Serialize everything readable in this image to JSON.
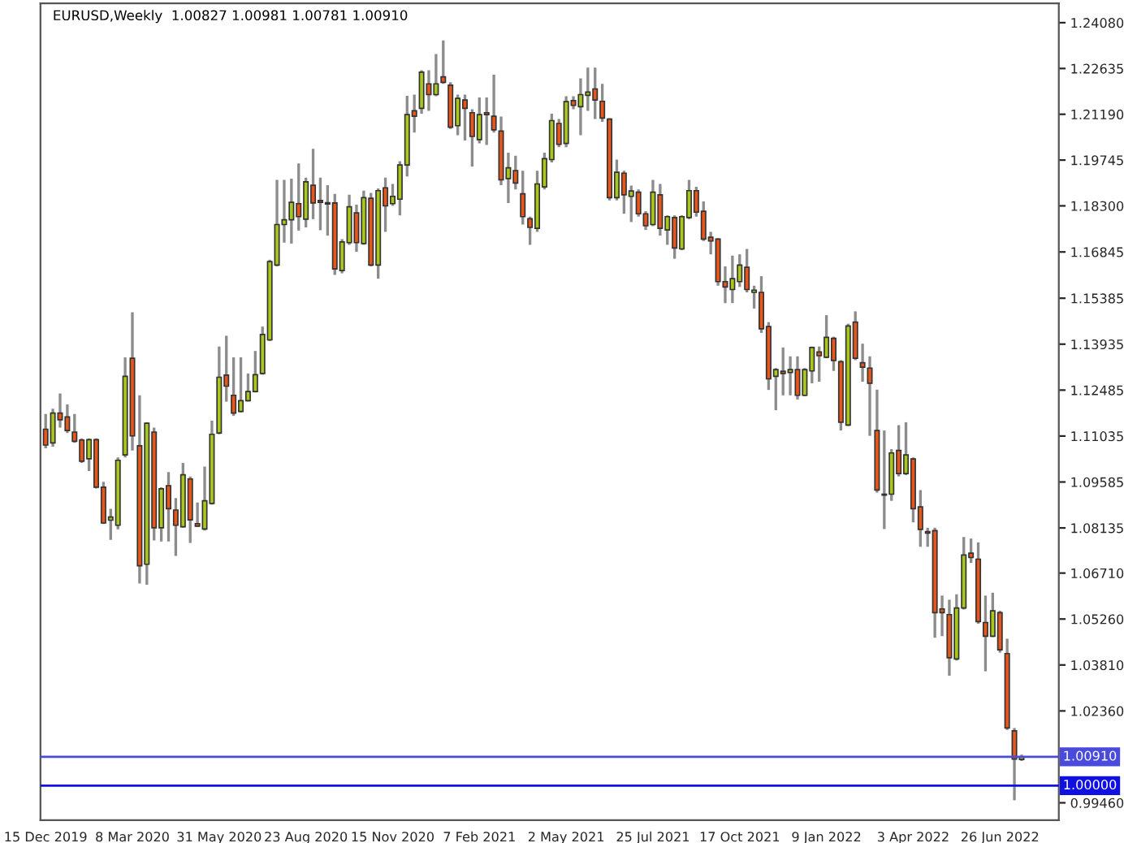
{
  "chart_data": {
    "type": "candlestick",
    "title": "EURUSD,Weekly  1.00827 1.00981 1.00781 1.00910",
    "x": [
      "2019-12-15",
      "2019-12-22",
      "2019-12-29",
      "2020-01-05",
      "2020-01-12",
      "2020-01-19",
      "2020-01-26",
      "2020-02-02",
      "2020-02-09",
      "2020-02-16",
      "2020-02-23",
      "2020-03-01",
      "2020-03-08",
      "2020-03-15",
      "2020-03-22",
      "2020-03-29",
      "2020-04-05",
      "2020-04-12",
      "2020-04-19",
      "2020-04-26",
      "2020-05-03",
      "2020-05-10",
      "2020-05-17",
      "2020-05-24",
      "2020-05-31",
      "2020-06-07",
      "2020-06-14",
      "2020-06-21",
      "2020-06-28",
      "2020-07-05",
      "2020-07-12",
      "2020-07-19",
      "2020-07-26",
      "2020-08-02",
      "2020-08-09",
      "2020-08-16",
      "2020-08-23",
      "2020-08-30",
      "2020-09-06",
      "2020-09-13",
      "2020-09-20",
      "2020-09-27",
      "2020-10-04",
      "2020-10-11",
      "2020-10-18",
      "2020-10-25",
      "2020-11-01",
      "2020-11-08",
      "2020-11-15",
      "2020-11-22",
      "2020-11-29",
      "2020-12-06",
      "2020-12-13",
      "2020-12-20",
      "2020-12-27",
      "2021-01-03",
      "2021-01-10",
      "2021-01-17",
      "2021-01-24",
      "2021-01-31",
      "2021-02-07",
      "2021-02-14",
      "2021-02-21",
      "2021-02-28",
      "2021-03-07",
      "2021-03-14",
      "2021-03-21",
      "2021-03-28",
      "2021-04-04",
      "2021-04-11",
      "2021-04-18",
      "2021-04-25",
      "2021-05-02",
      "2021-05-09",
      "2021-05-16",
      "2021-05-23",
      "2021-05-30",
      "2021-06-06",
      "2021-06-13",
      "2021-06-20",
      "2021-06-27",
      "2021-07-04",
      "2021-07-11",
      "2021-07-18",
      "2021-07-25",
      "2021-08-01",
      "2021-08-08",
      "2021-08-15",
      "2021-08-22",
      "2021-08-29",
      "2021-09-05",
      "2021-09-12",
      "2021-09-19",
      "2021-09-26",
      "2021-10-03",
      "2021-10-10",
      "2021-10-17",
      "2021-10-24",
      "2021-10-31",
      "2021-11-07",
      "2021-11-14",
      "2021-11-21",
      "2021-11-28",
      "2021-12-05",
      "2021-12-12",
      "2021-12-19",
      "2021-12-26",
      "2022-01-02",
      "2022-01-09",
      "2022-01-16",
      "2022-01-23",
      "2022-01-30",
      "2022-02-06",
      "2022-02-13",
      "2022-02-20",
      "2022-02-27",
      "2022-03-06",
      "2022-03-13",
      "2022-03-20",
      "2022-03-27",
      "2022-04-03",
      "2022-04-10",
      "2022-04-17",
      "2022-04-24",
      "2022-05-01",
      "2022-05-08",
      "2022-05-15",
      "2022-05-22",
      "2022-05-29",
      "2022-06-05",
      "2022-06-12",
      "2022-06-19",
      "2022-06-26",
      "2022-07-03",
      "2022-07-10",
      "2022-07-17"
    ],
    "ohlc": [
      [
        1.1125,
        1.1173,
        1.1065,
        1.1075
      ],
      [
        1.1082,
        1.119,
        1.107,
        1.1176
      ],
      [
        1.1176,
        1.1238,
        1.113,
        1.1155
      ],
      [
        1.1164,
        1.1203,
        1.1113,
        1.1121
      ],
      [
        1.1116,
        1.1173,
        1.1082,
        1.1087
      ],
      [
        1.1091,
        1.1096,
        1.1019,
        1.1024
      ],
      [
        1.1032,
        1.1096,
        1.0993,
        1.1092
      ],
      [
        1.1092,
        1.1096,
        1.0938,
        1.0942
      ],
      [
        1.0942,
        1.0959,
        1.0826,
        1.0829
      ],
      [
        1.0838,
        1.0874,
        1.0776,
        1.0848
      ],
      [
        1.0822,
        1.1036,
        1.0809,
        1.1027
      ],
      [
        1.1044,
        1.1352,
        1.1036,
        1.1292
      ],
      [
        1.1349,
        1.1494,
        1.1058,
        1.1104
      ],
      [
        1.1073,
        1.1232,
        1.0638,
        1.0694
      ],
      [
        1.0699,
        1.1147,
        1.0634,
        1.1144
      ],
      [
        1.1116,
        1.113,
        1.0774,
        1.0814
      ],
      [
        1.0814,
        1.0942,
        1.0771,
        1.0937
      ],
      [
        1.0947,
        1.099,
        1.0771,
        1.0874
      ],
      [
        1.087,
        1.0908,
        1.0725,
        1.0822
      ],
      [
        1.0817,
        1.1019,
        1.0814,
        1.0981
      ],
      [
        1.0968,
        1.0976,
        1.0766,
        1.0839
      ],
      [
        1.0827,
        1.0894,
        1.0817,
        1.0819
      ],
      [
        1.081,
        1.1007,
        1.0805,
        1.0899
      ],
      [
        1.0891,
        1.1152,
        1.0887,
        1.1109
      ],
      [
        1.1113,
        1.1386,
        1.1109,
        1.1289
      ],
      [
        1.1296,
        1.142,
        1.1212,
        1.1261
      ],
      [
        1.1232,
        1.1352,
        1.1167,
        1.1176
      ],
      [
        1.1181,
        1.1352,
        1.1178,
        1.1215
      ],
      [
        1.1215,
        1.1301,
        1.1212,
        1.1244
      ],
      [
        1.1244,
        1.1372,
        1.1241,
        1.1297
      ],
      [
        1.1301,
        1.1449,
        1.1297,
        1.1424
      ],
      [
        1.1407,
        1.166,
        1.1403,
        1.1654
      ],
      [
        1.1643,
        1.1912,
        1.1639,
        1.1771
      ],
      [
        1.1771,
        1.1912,
        1.1714,
        1.1786
      ],
      [
        1.1786,
        1.1916,
        1.1711,
        1.1841
      ],
      [
        1.1837,
        1.1964,
        1.1752,
        1.1796
      ],
      [
        1.1788,
        1.1919,
        1.1762,
        1.1906
      ],
      [
        1.1895,
        1.201,
        1.1788,
        1.1839
      ],
      [
        1.1847,
        1.1919,
        1.1753,
        1.1841
      ],
      [
        1.1836,
        1.1895,
        1.1736,
        1.184
      ],
      [
        1.1839,
        1.1868,
        1.1612,
        1.1631
      ],
      [
        1.1626,
        1.1725,
        1.1617,
        1.1716
      ],
      [
        1.1714,
        1.1865,
        1.1707,
        1.1827
      ],
      [
        1.1808,
        1.1834,
        1.1685,
        1.1714
      ],
      [
        1.1711,
        1.1878,
        1.1707,
        1.1856
      ],
      [
        1.1854,
        1.1871,
        1.1639,
        1.1643
      ],
      [
        1.1643,
        1.1885,
        1.16,
        1.1878
      ],
      [
        1.1887,
        1.1919,
        1.1748,
        1.183
      ],
      [
        1.1837,
        1.1899,
        1.183,
        1.186
      ],
      [
        1.1851,
        1.1971,
        1.18,
        1.1959
      ],
      [
        1.1959,
        1.2177,
        1.1923,
        1.2118
      ],
      [
        1.213,
        1.2181,
        1.2061,
        1.2113
      ],
      [
        1.2138,
        1.2258,
        1.2121,
        1.2252
      ],
      [
        1.2215,
        1.2258,
        1.213,
        1.2181
      ],
      [
        1.2181,
        1.2309,
        1.2176,
        1.2215
      ],
      [
        1.2237,
        1.2352,
        1.2215,
        1.222
      ],
      [
        1.2211,
        1.222,
        1.2073,
        1.2078
      ],
      [
        1.2083,
        1.2181,
        1.2053,
        1.2169
      ],
      [
        1.2164,
        1.2181,
        1.2036,
        1.2138
      ],
      [
        1.2124,
        1.2135,
        1.1954,
        1.2049
      ],
      [
        1.2039,
        1.2172,
        1.2027,
        1.2118
      ],
      [
        1.2124,
        1.2172,
        1.2022,
        1.2118
      ],
      [
        1.2113,
        1.2244,
        1.2061,
        1.207
      ],
      [
        1.2066,
        1.2112,
        1.1895,
        1.1912
      ],
      [
        1.1916,
        1.1998,
        1.1839,
        1.195
      ],
      [
        1.1941,
        1.1988,
        1.1882,
        1.1902
      ],
      [
        1.1868,
        1.1941,
        1.1771,
        1.1796
      ],
      [
        1.1789,
        1.1796,
        1.1707,
        1.1762
      ],
      [
        1.1759,
        1.1941,
        1.1748,
        1.1899
      ],
      [
        1.189,
        1.1998,
        1.1882,
        1.1979
      ],
      [
        1.1976,
        1.2121,
        1.1967,
        1.2099
      ],
      [
        1.209,
        1.2104,
        1.2015,
        1.2024
      ],
      [
        1.2027,
        1.2176,
        1.2015,
        1.2159
      ],
      [
        1.2162,
        1.2176,
        1.2135,
        1.2147
      ],
      [
        1.2143,
        1.2232,
        1.2053,
        1.2181
      ],
      [
        1.2179,
        1.2266,
        1.213,
        1.2189
      ],
      [
        1.2199,
        1.2266,
        1.2104,
        1.2164
      ],
      [
        1.216,
        1.2215,
        1.2095,
        1.2107
      ],
      [
        1.2104,
        1.2107,
        1.1847,
        1.1856
      ],
      [
        1.1856,
        1.1976,
        1.1847,
        1.1936
      ],
      [
        1.1933,
        1.1941,
        1.1805,
        1.1865
      ],
      [
        1.186,
        1.1894,
        1.1779,
        1.1877
      ],
      [
        1.1873,
        1.1882,
        1.1796,
        1.1805
      ],
      [
        1.1805,
        1.1813,
        1.1754,
        1.1767
      ],
      [
        1.1771,
        1.1912,
        1.1766,
        1.1873
      ],
      [
        1.1865,
        1.1899,
        1.1736,
        1.1759
      ],
      [
        1.1754,
        1.18,
        1.1707,
        1.1796
      ],
      [
        1.1793,
        1.18,
        1.1663,
        1.1697
      ],
      [
        1.1694,
        1.18,
        1.169,
        1.1796
      ],
      [
        1.1793,
        1.1912,
        1.1788,
        1.1878
      ],
      [
        1.1878,
        1.189,
        1.1796,
        1.181
      ],
      [
        1.1813,
        1.1844,
        1.1719,
        1.1725
      ],
      [
        1.1731,
        1.1748,
        1.1677,
        1.1719
      ],
      [
        1.1725,
        1.1728,
        1.1578,
        1.1591
      ],
      [
        1.1591,
        1.1639,
        1.1523,
        1.1574
      ],
      [
        1.1566,
        1.1673,
        1.1523,
        1.16
      ],
      [
        1.1591,
        1.1677,
        1.1574,
        1.1643
      ],
      [
        1.1636,
        1.1694,
        1.1557,
        1.1566
      ],
      [
        1.1557,
        1.1578,
        1.1506,
        1.1564
      ],
      [
        1.1557,
        1.1608,
        1.1429,
        1.1442
      ],
      [
        1.1449,
        1.1463,
        1.1249,
        1.1284
      ],
      [
        1.1292,
        1.1318,
        1.1185,
        1.1313
      ],
      [
        1.1308,
        1.1383,
        1.1232,
        1.1301
      ],
      [
        1.1304,
        1.1355,
        1.1232,
        1.1313
      ],
      [
        1.1313,
        1.1355,
        1.1219,
        1.1232
      ],
      [
        1.1232,
        1.1318,
        1.1229,
        1.1313
      ],
      [
        1.1309,
        1.1386,
        1.127,
        1.1383
      ],
      [
        1.1369,
        1.1386,
        1.1275,
        1.1357
      ],
      [
        1.1352,
        1.1485,
        1.1349,
        1.1415
      ],
      [
        1.1412,
        1.1417,
        1.1309,
        1.1342
      ],
      [
        1.1338,
        1.1343,
        1.1121,
        1.1147
      ],
      [
        1.1138,
        1.1458,
        1.1135,
        1.1451
      ],
      [
        1.1463,
        1.1497,
        1.1343,
        1.1349
      ],
      [
        1.1335,
        1.1395,
        1.1275,
        1.1321
      ],
      [
        1.1318,
        1.1355,
        1.1104,
        1.127
      ],
      [
        1.1121,
        1.125,
        1.0925,
        1.0933
      ],
      [
        1.092,
        1.1121,
        1.081,
        1.0917
      ],
      [
        1.092,
        1.1062,
        1.0899,
        1.105
      ],
      [
        1.1058,
        1.1138,
        1.0976,
        1.0985
      ],
      [
        1.0985,
        1.1147,
        1.098,
        1.1044
      ],
      [
        1.1031,
        1.1036,
        1.0831,
        1.0874
      ],
      [
        1.088,
        1.0933,
        1.0754,
        1.0809
      ],
      [
        1.0802,
        1.0814,
        1.0754,
        1.0797
      ],
      [
        1.0805,
        1.0814,
        1.0467,
        1.0546
      ],
      [
        1.0558,
        1.06,
        1.0472,
        1.0546
      ],
      [
        1.054,
        1.0587,
        1.0347,
        1.0404
      ],
      [
        1.04,
        1.0604,
        1.0395,
        1.0561
      ],
      [
        1.0561,
        1.0785,
        1.0556,
        1.0728
      ],
      [
        1.0734,
        1.078,
        1.0703,
        1.072
      ],
      [
        1.0715,
        1.0768,
        1.0511,
        1.0518
      ],
      [
        1.0515,
        1.06,
        1.0361,
        1.0472
      ],
      [
        1.0472,
        1.0609,
        1.0469,
        1.0552
      ],
      [
        1.0546,
        1.0552,
        1.042,
        1.0429
      ],
      [
        1.0417,
        1.0464,
        1.0176,
        1.0182
      ],
      [
        1.0173,
        1.0182,
        0.9954,
        1.0084
      ],
      [
        1.00827,
        1.00981,
        1.00781,
        1.0091
      ]
    ],
    "colors": [
      "#e8561c",
      "#a9c81c",
      "#e8561c",
      "#e8561c",
      "#e8561c",
      "#e8561c",
      "#a9c81c",
      "#e8561c",
      "#e8561c",
      "#a9c81c",
      "#a9c81c",
      "#a9c81c",
      "#e8561c",
      "#e8561c",
      "#a9c81c",
      "#e8561c",
      "#a9c81c",
      "#e8561c",
      "#e8561c",
      "#a9c81c",
      "#e8561c",
      "#e8561c",
      "#a9c81c",
      "#a9c81c",
      "#a9c81c",
      "#e8561c",
      "#e8561c",
      "#a9c81c",
      "#a9c81c",
      "#a9c81c",
      "#a9c81c",
      "#a9c81c",
      "#a9c81c",
      "#a9c81c",
      "#a9c81c",
      "#e8561c",
      "#a9c81c",
      "#e8561c",
      "#e8561c",
      "#a9c81c",
      "#e8561c",
      "#a9c81c",
      "#a9c81c",
      "#e8561c",
      "#a9c81c",
      "#e8561c",
      "#a9c81c",
      "#e8561c",
      "#a9c81c",
      "#a9c81c",
      "#a9c81c",
      "#e8561c",
      "#a9c81c",
      "#e8561c",
      "#a9c81c",
      "#e8561c",
      "#e8561c",
      "#a9c81c",
      "#e8561c",
      "#e8561c",
      "#a9c81c",
      "#e8561c",
      "#e8561c",
      "#e8561c",
      "#a9c81c",
      "#e8561c",
      "#e8561c",
      "#e8561c",
      "#a9c81c",
      "#a9c81c",
      "#a9c81c",
      "#e8561c",
      "#a9c81c",
      "#e8561c",
      "#a9c81c",
      "#a9c81c",
      "#e8561c",
      "#e8561c",
      "#e8561c",
      "#a9c81c",
      "#e8561c",
      "#a9c81c",
      "#e8561c",
      "#e8561c",
      "#a9c81c",
      "#e8561c",
      "#a9c81c",
      "#e8561c",
      "#a9c81c",
      "#a9c81c",
      "#e8561c",
      "#e8561c",
      "#e8561c",
      "#e8561c",
      "#e8561c",
      "#a9c81c",
      "#a9c81c",
      "#e8561c",
      "#a9c81c",
      "#e8561c",
      "#e8561c",
      "#a9c81c",
      "#e8561c",
      "#a9c81c",
      "#e8561c",
      "#a9c81c",
      "#a9c81c",
      "#e8561c",
      "#a9c81c",
      "#e8561c",
      "#e8561c",
      "#a9c81c",
      "#e8561c",
      "#e8561c",
      "#e8561c",
      "#e8561c",
      "#e8561c",
      "#a9c81c",
      "#e8561c",
      "#a9c81c",
      "#e8561c",
      "#e8561c",
      "#e8561c",
      "#e8561c",
      "#e8561c",
      "#e8561c",
      "#a9c81c",
      "#a9c81c",
      "#e8561c",
      "#e8561c",
      "#e8561c",
      "#a9c81c",
      "#e8561c",
      "#e8561c",
      "#e8561c",
      "#a9c81c"
    ],
    "xlim": [
      "2019-12-10",
      "2022-08-22"
    ],
    "xticks": [
      {
        "value": "2019-12-15",
        "label": "15 Dec 2019"
      },
      {
        "value": "2020-03-08",
        "label": "8 Mar 2020"
      },
      {
        "value": "2020-05-31",
        "label": "31 May 2020"
      },
      {
        "value": "2020-08-23",
        "label": "23 Aug 2020"
      },
      {
        "value": "2020-11-15",
        "label": "15 Nov 2020"
      },
      {
        "value": "2021-02-07",
        "label": "7 Feb 2021"
      },
      {
        "value": "2021-05-02",
        "label": "2 May 2021"
      },
      {
        "value": "2021-07-25",
        "label": "25 Jul 2021"
      },
      {
        "value": "2021-10-17",
        "label": "17 Oct 2021"
      },
      {
        "value": "2022-01-09",
        "label": "9 Jan 2022"
      },
      {
        "value": "2022-04-03",
        "label": "3 Apr 2022"
      },
      {
        "value": "2022-06-26",
        "label": "26 Jun 2022"
      }
    ],
    "ylim": [
      0.9891,
      1.2469
    ],
    "yticks": [
      {
        "value": 1.2408,
        "label": "1.24080"
      },
      {
        "value": 1.22635,
        "label": "1.22635"
      },
      {
        "value": 1.2119,
        "label": "1.21190"
      },
      {
        "value": 1.19745,
        "label": "1.19745"
      },
      {
        "value": 1.183,
        "label": "1.18300"
      },
      {
        "value": 1.16845,
        "label": "1.16845"
      },
      {
        "value": 1.15385,
        "label": "1.15385"
      },
      {
        "value": 1.13935,
        "label": "1.13935"
      },
      {
        "value": 1.12485,
        "label": "1.12485"
      },
      {
        "value": 1.11035,
        "label": "1.11035"
      },
      {
        "value": 1.09585,
        "label": "1.09585"
      },
      {
        "value": 1.08135,
        "label": "1.08135"
      },
      {
        "value": 1.0671,
        "label": "1.06710"
      },
      {
        "value": 1.0526,
        "label": "1.05260"
      },
      {
        "value": 1.0381,
        "label": "1.03810"
      },
      {
        "value": 1.0236,
        "label": "1.02360"
      },
      {
        "value": 0.9946,
        "label": "0.99460"
      }
    ],
    "ref_lines": [
      {
        "axis": "y",
        "value": 1.0091,
        "label": "1.00910",
        "color": "#4a4adc"
      },
      {
        "axis": "y",
        "value": 1.0,
        "label": "1.00000",
        "color": "#1010e0"
      }
    ],
    "grid": false,
    "legend": false
  }
}
